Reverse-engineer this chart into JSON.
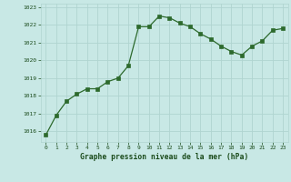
{
  "x": [
    0,
    1,
    2,
    3,
    4,
    5,
    6,
    7,
    8,
    9,
    10,
    11,
    12,
    13,
    14,
    15,
    16,
    17,
    18,
    19,
    20,
    21,
    22,
    23
  ],
  "y": [
    1015.8,
    1016.9,
    1017.7,
    1018.1,
    1018.4,
    1018.4,
    1018.8,
    1019.0,
    1019.7,
    1021.9,
    1021.9,
    1022.5,
    1022.4,
    1022.1,
    1021.9,
    1021.5,
    1021.2,
    1020.8,
    1020.5,
    1020.3,
    1020.8,
    1021.1,
    1021.7,
    1021.8
  ],
  "line_color": "#2d6a2d",
  "marker_color": "#2d6a2d",
  "bg_color": "#c8e8e5",
  "grid_color": "#b0d4d0",
  "xlabel": "Graphe pression niveau de la mer (hPa)",
  "xlabel_color": "#1a4a1a",
  "tick_color": "#1a4a1a",
  "ylim_min": 1015.4,
  "ylim_max": 1023.2,
  "yticks": [
    1016,
    1017,
    1018,
    1019,
    1020,
    1021,
    1022,
    1023
  ],
  "xticks": [
    0,
    1,
    2,
    3,
    4,
    5,
    6,
    7,
    8,
    9,
    10,
    11,
    12,
    13,
    14,
    15,
    16,
    17,
    18,
    19,
    20,
    21,
    22,
    23
  ]
}
